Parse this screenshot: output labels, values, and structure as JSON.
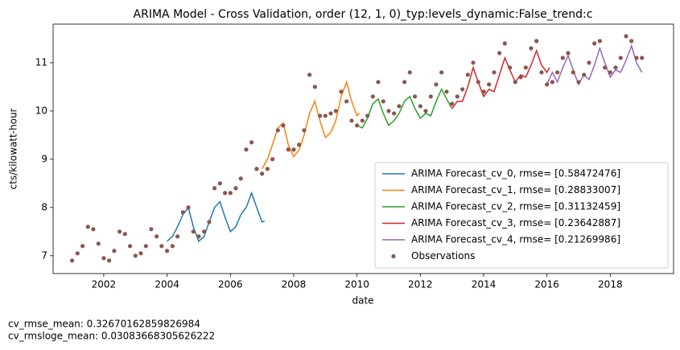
{
  "chart_data": {
    "type": "line",
    "title": "ARIMA Model - Cross Validation, order (12, 1, 0)_typ:levels_dynamic:False_trend:c",
    "x_label": "date",
    "y_label": "cts/kilowatt-hour",
    "xlim": [
      2000.4,
      2020.0
    ],
    "ylim": [
      6.63,
      11.8
    ],
    "xticks": [
      2002,
      2004,
      2006,
      2008,
      2010,
      2012,
      2014,
      2016,
      2018
    ],
    "yticks": [
      7,
      8,
      9,
      10,
      11
    ],
    "legend": "lower right",
    "annotations": [
      "cv_rmse_mean: 0.32670162859826984",
      "cv_rmsloge_mean: 0.03083668305626222"
    ],
    "series": [
      {
        "name": "ARIMA Forecast_cv_0, rmse= [0.58472476]",
        "color": "#1f77b4",
        "type": "line",
        "x": [
          2004.0,
          2004.17,
          2004.33,
          2004.5,
          2004.67,
          2004.83,
          2005.0,
          2005.17,
          2005.33,
          2005.5,
          2005.67,
          2005.83,
          2006.0,
          2006.17,
          2006.33,
          2006.5,
          2006.67,
          2006.83,
          2007.0,
          2007.08
        ],
        "values": [
          7.3,
          7.4,
          7.6,
          7.85,
          8.0,
          7.6,
          7.3,
          7.4,
          7.7,
          8.0,
          8.12,
          7.8,
          7.5,
          7.6,
          7.85,
          8.0,
          8.3,
          8.0,
          7.7,
          7.72
        ]
      },
      {
        "name": "ARIMA Forecast_cv_1, rmse= [0.28833007]",
        "color": "#ff7f0e",
        "type": "line",
        "x": [
          2007.0,
          2007.17,
          2007.33,
          2007.5,
          2007.67,
          2007.83,
          2008.0,
          2008.17,
          2008.33,
          2008.5,
          2008.67,
          2008.83,
          2009.0,
          2009.17,
          2009.33,
          2009.5,
          2009.67,
          2009.83,
          2010.0,
          2010.08
        ],
        "values": [
          8.8,
          9.0,
          9.3,
          9.65,
          9.75,
          9.3,
          9.05,
          9.2,
          9.5,
          9.95,
          10.2,
          9.8,
          9.45,
          9.55,
          9.8,
          10.3,
          10.6,
          10.2,
          9.9,
          9.95
        ]
      },
      {
        "name": "ARIMA Forecast_cv_2, rmse= [0.31132459]",
        "color": "#2ca02c",
        "type": "line",
        "x": [
          2010.0,
          2010.17,
          2010.33,
          2010.5,
          2010.67,
          2010.83,
          2011.0,
          2011.17,
          2011.33,
          2011.5,
          2011.67,
          2011.83,
          2012.0,
          2012.17,
          2012.33,
          2012.5,
          2012.67,
          2012.83,
          2013.0
        ],
        "values": [
          9.7,
          9.65,
          9.85,
          10.15,
          10.25,
          9.95,
          9.7,
          9.8,
          9.95,
          10.2,
          10.3,
          10.05,
          9.85,
          9.95,
          9.9,
          10.2,
          10.45,
          10.25,
          10.05
        ]
      },
      {
        "name": "ARIMA Forecast_cv_3, rmse= [0.23642887]",
        "color": "#d62728",
        "type": "line",
        "x": [
          2013.0,
          2013.17,
          2013.33,
          2013.5,
          2013.67,
          2013.83,
          2014.0,
          2014.17,
          2014.33,
          2014.5,
          2014.67,
          2014.83,
          2015.0,
          2015.17,
          2015.33,
          2015.5,
          2015.67,
          2015.83,
          2016.0,
          2016.08
        ],
        "values": [
          10.05,
          10.2,
          10.2,
          10.5,
          10.9,
          10.6,
          10.3,
          10.45,
          10.4,
          10.75,
          11.1,
          10.85,
          10.6,
          10.75,
          10.7,
          10.95,
          11.25,
          10.95,
          10.8,
          10.9
        ]
      },
      {
        "name": "ARIMA Forecast_cv_4, rmse= [0.21269986]",
        "color": "#9467bd",
        "type": "line",
        "x": [
          2016.0,
          2016.17,
          2016.33,
          2016.5,
          2016.67,
          2016.83,
          2017.0,
          2017.17,
          2017.33,
          2017.5,
          2017.67,
          2017.83,
          2018.0,
          2018.17,
          2018.33,
          2018.5,
          2018.67,
          2018.83,
          2019.0
        ],
        "values": [
          10.55,
          10.8,
          10.6,
          10.9,
          11.15,
          10.85,
          10.55,
          10.75,
          10.65,
          10.95,
          11.3,
          11.0,
          10.7,
          10.85,
          10.8,
          11.05,
          11.35,
          11.0,
          10.8
        ]
      },
      {
        "name": "Observations",
        "color": "#8c564b",
        "type": "scatter",
        "x": [
          2001.0,
          2001.17,
          2001.33,
          2001.5,
          2001.67,
          2001.83,
          2002.0,
          2002.17,
          2002.33,
          2002.5,
          2002.67,
          2002.83,
          2003.0,
          2003.17,
          2003.33,
          2003.5,
          2003.67,
          2003.83,
          2004.0,
          2004.17,
          2004.33,
          2004.5,
          2004.67,
          2004.83,
          2005.0,
          2005.17,
          2005.33,
          2005.5,
          2005.67,
          2005.83,
          2006.0,
          2006.17,
          2006.33,
          2006.5,
          2006.67,
          2006.83,
          2007.0,
          2007.17,
          2007.33,
          2007.5,
          2007.67,
          2007.83,
          2008.0,
          2008.17,
          2008.33,
          2008.5,
          2008.67,
          2008.83,
          2009.0,
          2009.17,
          2009.33,
          2009.5,
          2009.67,
          2009.83,
          2010.0,
          2010.17,
          2010.33,
          2010.5,
          2010.67,
          2010.83,
          2011.0,
          2011.17,
          2011.33,
          2011.5,
          2011.67,
          2011.83,
          2012.0,
          2012.17,
          2012.33,
          2012.5,
          2012.67,
          2012.83,
          2013.0,
          2013.17,
          2013.33,
          2013.5,
          2013.67,
          2013.83,
          2014.0,
          2014.17,
          2014.33,
          2014.5,
          2014.67,
          2014.83,
          2015.0,
          2015.17,
          2015.33,
          2015.5,
          2015.67,
          2015.83,
          2016.0,
          2016.17,
          2016.33,
          2016.5,
          2016.67,
          2016.83,
          2017.0,
          2017.17,
          2017.33,
          2017.5,
          2017.67,
          2017.83,
          2018.0,
          2018.17,
          2018.33,
          2018.5,
          2018.67,
          2018.83,
          2019.0
        ],
        "values": [
          6.9,
          7.05,
          7.2,
          7.6,
          7.55,
          7.25,
          6.95,
          6.9,
          7.1,
          7.5,
          7.45,
          7.2,
          7.0,
          7.05,
          7.2,
          7.55,
          7.4,
          7.2,
          7.1,
          7.2,
          7.4,
          7.9,
          8.0,
          7.5,
          7.4,
          7.5,
          7.7,
          8.4,
          8.5,
          8.3,
          8.3,
          8.4,
          8.6,
          9.2,
          9.35,
          8.8,
          8.7,
          8.8,
          9.0,
          9.6,
          9.7,
          9.2,
          9.2,
          9.3,
          9.6,
          10.75,
          10.5,
          9.9,
          9.9,
          9.95,
          10.0,
          10.4,
          10.2,
          9.8,
          9.7,
          9.8,
          9.9,
          10.3,
          10.6,
          10.2,
          10.0,
          9.95,
          10.1,
          10.6,
          10.8,
          10.3,
          10.1,
          10.0,
          10.3,
          10.55,
          10.8,
          10.4,
          10.15,
          10.3,
          10.45,
          10.75,
          11.0,
          10.6,
          10.4,
          10.55,
          10.8,
          11.2,
          11.4,
          10.9,
          10.6,
          10.7,
          10.9,
          11.3,
          11.45,
          10.8,
          10.55,
          10.6,
          10.8,
          11.1,
          11.2,
          10.8,
          10.6,
          10.75,
          11.0,
          11.4,
          11.45,
          10.9,
          10.8,
          10.9,
          11.1,
          11.55,
          11.45,
          11.1,
          11.1
        ]
      }
    ]
  }
}
